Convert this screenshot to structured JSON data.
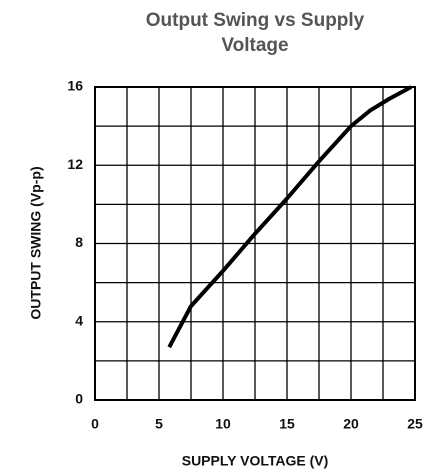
{
  "chart_data": {
    "type": "line",
    "title": "Output Swing vs Supply Voltage",
    "xlabel": "SUPPLY VOLTAGE (V)",
    "ylabel": "OUTPUT SWING (Vp-p)",
    "x": [
      5.8,
      7.5,
      10,
      12.5,
      15,
      17.5,
      20,
      21.5,
      23,
      24.7
    ],
    "series": [
      {
        "name": "Output Swing",
        "color": "#000000",
        "values": [
          2.7,
          4.8,
          6.6,
          8.5,
          10.3,
          12.2,
          14,
          14.8,
          15.4,
          16
        ]
      }
    ],
    "xlim": [
      0,
      25
    ],
    "ylim": [
      0,
      16
    ],
    "xticks": [
      0,
      5,
      10,
      15,
      20,
      25
    ],
    "yticks": [
      0,
      4,
      8,
      12,
      16
    ],
    "xgrid": [
      0,
      2.5,
      5,
      7.5,
      10,
      12.5,
      15,
      17.5,
      20,
      22.5,
      25
    ],
    "ygrid": [
      0,
      2,
      4,
      6,
      8,
      10,
      12,
      14,
      16
    ],
    "grid": true
  }
}
